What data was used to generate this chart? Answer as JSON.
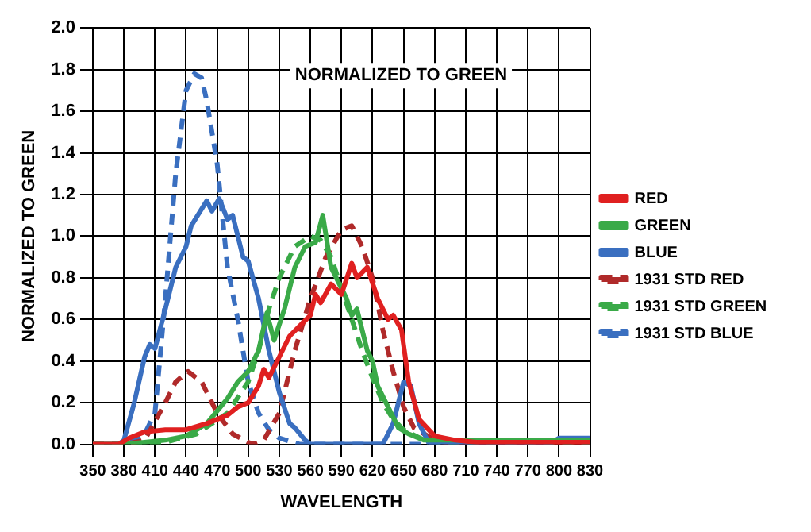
{
  "chart_data": {
    "type": "line",
    "title": "NORMALIZED TO GREEN",
    "xlabel": "WAVELENGTH",
    "ylabel": "NORMALIZED TO GREEN",
    "xlim": [
      350,
      830
    ],
    "xticks": [
      350,
      380,
      410,
      440,
      470,
      500,
      530,
      560,
      590,
      620,
      650,
      680,
      710,
      740,
      770,
      800,
      830
    ],
    "ylim": [
      0,
      2.0
    ],
    "yticks": [
      {
        "value": 0,
        "label": "0.0"
      },
      {
        "value": 0.2,
        "label": "0.2"
      },
      {
        "value": 0.4,
        "label": "0.4"
      },
      {
        "value": 0.6,
        "label": "0.6"
      },
      {
        "value": 0.8,
        "label": "0.8"
      },
      {
        "value": 1.0,
        "label": "1.0"
      },
      {
        "value": 1.2,
        "label": "1.2"
      },
      {
        "value": 1.4,
        "label": "1.4"
      },
      {
        "value": 1.6,
        "label": "1.6"
      },
      {
        "value": 1.8,
        "label": "1.8"
      },
      {
        "value": 2.0,
        "label": "2.0"
      }
    ],
    "grid": true,
    "legend": "right",
    "marker": "none",
    "series": [
      {
        "name": "RED",
        "color": "#e02020",
        "line_style": "solid",
        "x": [
          350,
          375,
          385,
          400,
          420,
          440,
          460,
          480,
          490,
          500,
          510,
          515,
          520,
          530,
          540,
          550,
          560,
          565,
          570,
          580,
          590,
          600,
          605,
          615,
          625,
          635,
          640,
          648,
          655,
          665,
          680,
          700,
          720,
          830
        ],
        "values": [
          0,
          0,
          0.03,
          0.06,
          0.07,
          0.07,
          0.1,
          0.14,
          0.18,
          0.2,
          0.28,
          0.36,
          0.32,
          0.42,
          0.52,
          0.57,
          0.62,
          0.72,
          0.68,
          0.77,
          0.72,
          0.87,
          0.8,
          0.85,
          0.7,
          0.6,
          0.62,
          0.55,
          0.3,
          0.12,
          0.04,
          0.02,
          0.01,
          0.01
        ]
      },
      {
        "name": "GREEN",
        "color": "#3aaa48",
        "line_style": "solid",
        "x": [
          350,
          380,
          400,
          420,
          440,
          460,
          480,
          490,
          500,
          510,
          518,
          525,
          535,
          545,
          555,
          565,
          572,
          580,
          590,
          595,
          600,
          605,
          615,
          620,
          625,
          635,
          645,
          655,
          670,
          700,
          830
        ],
        "values": [
          0,
          0,
          0.01,
          0.02,
          0.04,
          0.1,
          0.22,
          0.3,
          0.35,
          0.45,
          0.63,
          0.5,
          0.65,
          0.85,
          0.95,
          0.97,
          1.1,
          0.85,
          0.75,
          0.7,
          0.62,
          0.65,
          0.45,
          0.4,
          0.28,
          0.18,
          0.08,
          0.05,
          0.02,
          0.02,
          0.02
        ]
      },
      {
        "name": "BLUE",
        "color": "#3a6fc0",
        "line_style": "solid",
        "x": [
          350,
          375,
          380,
          390,
          400,
          405,
          410,
          420,
          430,
          440,
          445,
          460,
          465,
          472,
          480,
          485,
          495,
          500,
          510,
          520,
          530,
          540,
          545,
          555,
          560,
          630,
          640,
          650,
          657,
          665,
          675,
          790,
          800,
          830
        ],
        "values": [
          0,
          0,
          0.02,
          0.2,
          0.42,
          0.48,
          0.46,
          0.65,
          0.85,
          0.95,
          1.05,
          1.17,
          1.12,
          1.18,
          1.08,
          1.1,
          0.9,
          0.88,
          0.7,
          0.45,
          0.25,
          0.1,
          0.08,
          0.02,
          0,
          0,
          0.1,
          0.3,
          0.28,
          0.1,
          0,
          0,
          0.03,
          0.03
        ]
      },
      {
        "name": "1931 STD RED",
        "color": "#b02a2a",
        "line_style": "dashed",
        "x": [
          350,
          380,
          400,
          420,
          430,
          442,
          455,
          470,
          485,
          500,
          505,
          515,
          530,
          545,
          560,
          575,
          590,
          600,
          610,
          620,
          630,
          640,
          650,
          660,
          680,
          700,
          830
        ],
        "values": [
          0,
          0,
          0.02,
          0.2,
          0.3,
          0.35,
          0.3,
          0.15,
          0.05,
          0.01,
          0,
          0.02,
          0.15,
          0.45,
          0.7,
          0.9,
          1.03,
          1.05,
          0.95,
          0.8,
          0.55,
          0.35,
          0.18,
          0.08,
          0.02,
          0,
          0
        ]
      },
      {
        "name": "1931 STD GREEN",
        "color": "#3aaa48",
        "line_style": "dashed",
        "x": [
          350,
          380,
          420,
          450,
          480,
          500,
          510,
          520,
          530,
          545,
          560,
          570,
          580,
          590,
          600,
          610,
          620,
          630,
          640,
          650,
          670,
          700,
          830
        ],
        "values": [
          0,
          0,
          0.01,
          0.05,
          0.15,
          0.3,
          0.45,
          0.65,
          0.8,
          0.95,
          1.0,
          0.98,
          0.9,
          0.75,
          0.6,
          0.45,
          0.32,
          0.2,
          0.12,
          0.07,
          0.02,
          0,
          0
        ]
      },
      {
        "name": "1931 STD BLUE",
        "color": "#3a6fc0",
        "line_style": "dashed",
        "x": [
          350,
          380,
          400,
          410,
          420,
          430,
          440,
          448,
          455,
          460,
          470,
          475,
          480,
          490,
          500,
          510,
          520,
          530,
          550,
          830
        ],
        "values": [
          0,
          0,
          0.05,
          0.15,
          0.7,
          1.3,
          1.7,
          1.78,
          1.76,
          1.65,
          1.35,
          1.1,
          0.85,
          0.6,
          0.3,
          0.15,
          0.07,
          0.03,
          0,
          0
        ]
      }
    ]
  }
}
